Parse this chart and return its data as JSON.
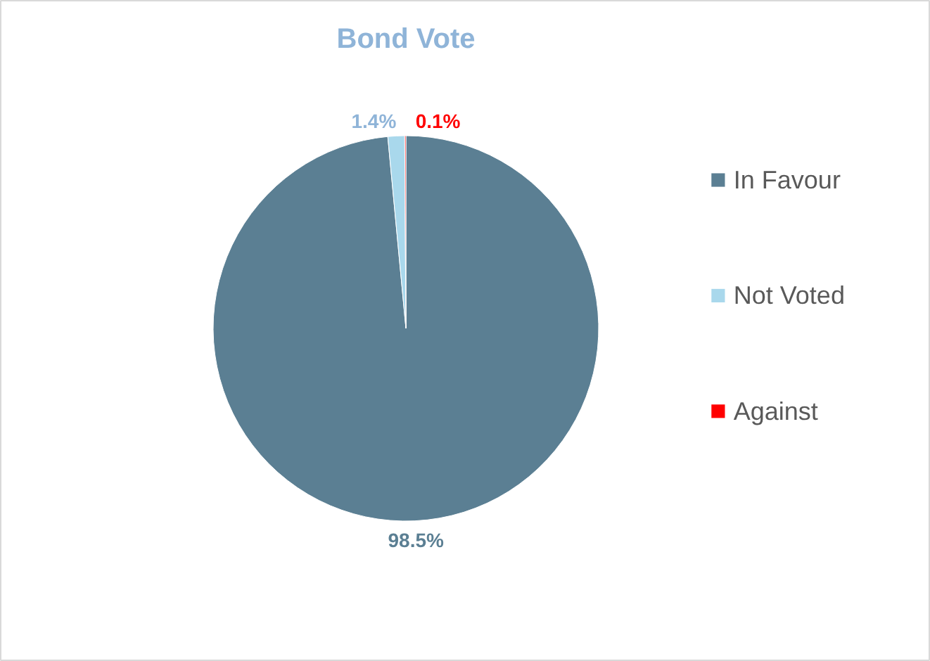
{
  "chart_data": {
    "type": "pie",
    "title": "Bond Vote",
    "categories": [
      "In Favour",
      "Not Voted",
      "Against"
    ],
    "values": [
      98.5,
      1.4,
      0.1
    ],
    "colors": [
      "#5b7f93",
      "#a9d8ec",
      "#ff0000"
    ],
    "value_labels": [
      "98.5%",
      "1.4%",
      "0.1%"
    ],
    "legend": "right"
  }
}
